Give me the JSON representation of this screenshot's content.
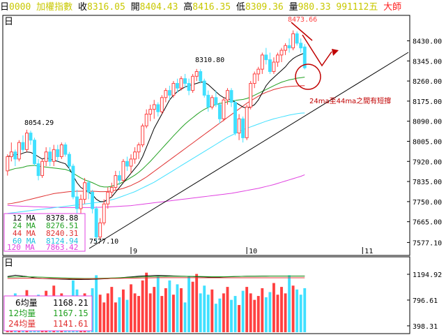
{
  "header": {
    "period_label": "日",
    "code": "0000",
    "name": "加權指數",
    "close_label": "收",
    "close": "8316.05",
    "open_label": "開",
    "open": "8404.43",
    "high_label": "高",
    "high": "8416.35",
    "low_label": "低",
    "low": "8309.36",
    "volume_label": "量",
    "volume": "980.33",
    "date": "991112五",
    "brand": "大師"
  },
  "colors": {
    "up": "#ff4040",
    "down": "#40e0ff",
    "ma12": "#000000",
    "ma24": "#20a020",
    "ma44": "#e03030",
    "ma60": "#40e0ff",
    "ma120": "#e040e0",
    "vol_ma6": "#000000",
    "vol_ma12": "#20a020",
    "vol_ma24": "#e03030"
  },
  "price_panel": {
    "corner_label": "日",
    "annotation": "24ma至44ma之間有短撐",
    "annotation_color": "#c00000",
    "marks": {
      "high": "8473.66",
      "mid": "8310.80",
      "left": "8054.29",
      "low": "7577.10"
    },
    "legend": [
      {
        "label": "12 MA",
        "value": "8378.88"
      },
      {
        "label": "24 MA",
        "value": "8276.51"
      },
      {
        "label": "44 MA",
        "value": "8240.31"
      },
      {
        "label": "60 MA",
        "value": "8124.94"
      },
      {
        "label": "120 MA",
        "value": "7863.42"
      }
    ]
  },
  "volume_panel": {
    "corner_label": "日",
    "legend": [
      {
        "label": "6均量",
        "value": "1168.21"
      },
      {
        "label": "12均量",
        "value": "1167.15"
      },
      {
        "label": "24均量",
        "value": "1141.61"
      }
    ]
  },
  "chart_data": {
    "type": "candlestick",
    "ylim": [
      7540,
      8520
    ],
    "ticks": [
      8430.0,
      8345.0,
      8260.0,
      8175.0,
      8090.0,
      8005.0,
      7920.0,
      7835.0,
      7750.0,
      7665.0,
      7577.1
    ],
    "tick_labels": [
      "8430.00",
      "8345.00",
      "8260.00",
      "8175.00",
      "8090.00",
      "8005.00",
      "7920.00",
      "7835.00",
      "7750.00",
      "7665.00",
      "7577.10"
    ],
    "month_labels": [
      {
        "label": "9",
        "index": 32
      },
      {
        "label": "10",
        "index": 62
      },
      {
        "label": "11",
        "index": 92
      }
    ],
    "ohlc": [
      [
        7880,
        7950,
        7860,
        7940
      ],
      [
        7940,
        8000,
        7920,
        7960
      ],
      [
        7960,
        7970,
        7900,
        7930
      ],
      [
        7930,
        8010,
        7920,
        8000
      ],
      [
        8000,
        8030,
        7960,
        7970
      ],
      [
        7970,
        8054,
        7960,
        8040
      ],
      [
        8040,
        8050,
        7990,
        8010
      ],
      [
        8010,
        8020,
        7900,
        7910
      ],
      [
        7910,
        7930,
        7840,
        7860
      ],
      [
        7860,
        7930,
        7850,
        7920
      ],
      [
        7920,
        7980,
        7900,
        7960
      ],
      [
        7960,
        7980,
        7900,
        7920
      ],
      [
        7920,
        7990,
        7900,
        7970
      ],
      [
        7970,
        7990,
        7920,
        7940
      ],
      [
        7940,
        8000,
        7930,
        7990
      ],
      [
        7990,
        8000,
        7940,
        7950
      ],
      [
        7950,
        7960,
        7880,
        7900
      ],
      [
        7900,
        7910,
        7760,
        7770
      ],
      [
        7770,
        7800,
        7700,
        7720
      ],
      [
        7720,
        7780,
        7690,
        7760
      ],
      [
        7760,
        7850,
        7740,
        7830
      ],
      [
        7830,
        7840,
        7760,
        7790
      ],
      [
        7790,
        7800,
        7700,
        7720
      ],
      [
        7720,
        7730,
        7577,
        7600
      ],
      [
        7600,
        7680,
        7590,
        7660
      ],
      [
        7660,
        7760,
        7650,
        7740
      ],
      [
        7740,
        7810,
        7720,
        7790
      ],
      [
        7790,
        7830,
        7770,
        7810
      ],
      [
        7810,
        7880,
        7800,
        7860
      ],
      [
        7860,
        7880,
        7820,
        7840
      ],
      [
        7840,
        7930,
        7830,
        7920
      ],
      [
        7920,
        7940,
        7880,
        7900
      ],
      [
        7900,
        7950,
        7870,
        7930
      ],
      [
        7930,
        7980,
        7910,
        7960
      ],
      [
        7960,
        8000,
        7930,
        7990
      ],
      [
        7990,
        8080,
        7980,
        8070
      ],
      [
        8070,
        8140,
        8060,
        8120
      ],
      [
        8120,
        8160,
        8090,
        8140
      ],
      [
        8140,
        8180,
        8100,
        8160
      ],
      [
        8160,
        8170,
        8110,
        8130
      ],
      [
        8130,
        8200,
        8120,
        8190
      ],
      [
        8190,
        8230,
        8170,
        8220
      ],
      [
        8220,
        8240,
        8180,
        8200
      ],
      [
        8200,
        8260,
        8190,
        8250
      ],
      [
        8250,
        8270,
        8210,
        8230
      ],
      [
        8230,
        8280,
        8220,
        8270
      ],
      [
        8270,
        8290,
        8230,
        8250
      ],
      [
        8250,
        8270,
        8200,
        8220
      ],
      [
        8220,
        8290,
        8210,
        8280
      ],
      [
        8280,
        8311,
        8260,
        8300
      ],
      [
        8300,
        8310,
        8250,
        8260
      ],
      [
        8260,
        8270,
        8190,
        8200
      ],
      [
        8200,
        8220,
        8130,
        8150
      ],
      [
        8150,
        8200,
        8140,
        8190
      ],
      [
        8190,
        8220,
        8150,
        8160
      ],
      [
        8160,
        8170,
        8080,
        8100
      ],
      [
        8100,
        8190,
        8090,
        8180
      ],
      [
        8180,
        8230,
        8160,
        8220
      ],
      [
        8220,
        8230,
        8150,
        8170
      ],
      [
        8170,
        8180,
        8030,
        8040
      ],
      [
        8040,
        8120,
        8010,
        8100
      ],
      [
        8100,
        8110,
        8000,
        8020
      ],
      [
        8020,
        8160,
        8010,
        8150
      ],
      [
        8150,
        8260,
        8140,
        8250
      ],
      [
        8250,
        8300,
        8230,
        8290
      ],
      [
        8290,
        8320,
        8260,
        8310
      ],
      [
        8310,
        8380,
        8290,
        8370
      ],
      [
        8370,
        8400,
        8330,
        8350
      ],
      [
        8350,
        8380,
        8290,
        8300
      ],
      [
        8300,
        8360,
        8290,
        8340
      ],
      [
        8340,
        8380,
        8320,
        8370
      ],
      [
        8370,
        8400,
        8340,
        8390
      ],
      [
        8390,
        8420,
        8370,
        8410
      ],
      [
        8410,
        8440,
        8380,
        8400
      ],
      [
        8400,
        8474,
        8390,
        8460
      ],
      [
        8460,
        8470,
        8410,
        8420
      ],
      [
        8420,
        8440,
        8380,
        8400
      ],
      [
        8404,
        8416,
        8309,
        8316
      ]
    ],
    "ma12": [
      7940,
      7945,
      7950,
      7948,
      7955,
      7960,
      7958,
      7950,
      7940,
      7930,
      7935,
      7930,
      7925,
      7920,
      7915,
      7910,
      7890,
      7860,
      7830,
      7810,
      7800,
      7790,
      7780,
      7760,
      7750,
      7750,
      7760,
      7770,
      7790,
      7810,
      7830,
      7850,
      7870,
      7890,
      7910,
      7940,
      7980,
      8020,
      8060,
      8090,
      8120,
      8150,
      8180,
      8200,
      8215,
      8225,
      8235,
      8240,
      8245,
      8250,
      8255,
      8255,
      8245,
      8230,
      8215,
      8200,
      8190,
      8185,
      8180,
      8170,
      8160,
      8150,
      8145,
      8150,
      8160,
      8180,
      8210,
      8240,
      8260,
      8275,
      8290,
      8305,
      8320,
      8340,
      8355,
      8365,
      8372,
      8378.88
    ],
    "ma24": [
      7880,
      7885,
      7890,
      7892,
      7895,
      7900,
      7902,
      7903,
      7900,
      7898,
      7896,
      7894,
      7892,
      7890,
      7888,
      7886,
      7880,
      7870,
      7860,
      7850,
      7842,
      7836,
      7830,
      7822,
      7815,
      7812,
      7812,
      7815,
      7820,
      7826,
      7833,
      7842,
      7852,
      7862,
      7874,
      7888,
      7904,
      7920,
      7938,
      7956,
      7974,
      7992,
      8010,
      8028,
      8045,
      8062,
      8078,
      8092,
      8105,
      8118,
      8130,
      8140,
      8148,
      8155,
      8160,
      8165,
      8168,
      8172,
      8175,
      8178,
      8180,
      8182,
      8186,
      8192,
      8200,
      8208,
      8216,
      8224,
      8232,
      8240,
      8248,
      8255,
      8260,
      8265,
      8268,
      8272,
      8274,
      8276.51
    ],
    "ma44": [
      7740,
      7742,
      7745,
      7748,
      7752,
      7756,
      7760,
      7764,
      7768,
      7772,
      7776,
      7780,
      7784,
      7786,
      7788,
      7790,
      7792,
      7793,
      7794,
      7794,
      7794,
      7794,
      7794,
      7793,
      7792,
      7792,
      7793,
      7795,
      7798,
      7802,
      7806,
      7812,
      7818,
      7826,
      7834,
      7844,
      7854,
      7866,
      7878,
      7890,
      7902,
      7914,
      7926,
      7938,
      7950,
      7962,
      7974,
      7986,
      7998,
      8010,
      8022,
      8034,
      8046,
      8058,
      8070,
      8082,
      8094,
      8106,
      8118,
      8130,
      8142,
      8154,
      8166,
      8176,
      8186,
      8196,
      8205,
      8212,
      8218,
      8224,
      8228,
      8232,
      8235,
      8237,
      8238,
      8239,
      8240,
      8240.31
    ],
    "ma60": [
      7700,
      7702,
      7704,
      7706,
      7708,
      7710,
      7712,
      7714,
      7716,
      7718,
      7720,
      7722,
      7724,
      7726,
      7728,
      7730,
      7732,
      7734,
      7736,
      7738,
      7740,
      7742,
      7744,
      7746,
      7748,
      7750,
      7754,
      7758,
      7762,
      7768,
      7774,
      7780,
      7786,
      7792,
      7800,
      7808,
      7816,
      7824,
      7832,
      7842,
      7852,
      7862,
      7872,
      7882,
      7892,
      7902,
      7912,
      7922,
      7932,
      7942,
      7952,
      7962,
      7972,
      7982,
      7992,
      8002,
      8012,
      8022,
      8030,
      8038,
      8046,
      8054,
      8060,
      8066,
      8072,
      8078,
      8084,
      8090,
      8095,
      8100,
      8104,
      8108,
      8112,
      8116,
      8119,
      8122,
      8124,
      8124.94
    ],
    "ma120": [
      7734,
      7733,
      7732,
      7731,
      7730,
      7730,
      7729,
      7728,
      7728,
      7727,
      7727,
      7726,
      7726,
      7726,
      7725,
      7725,
      7725,
      7725,
      7725,
      7725,
      7725,
      7725,
      7725,
      7726,
      7726,
      7727,
      7727,
      7728,
      7729,
      7730,
      7731,
      7732,
      7733,
      7735,
      7737,
      7739,
      7741,
      7743,
      7745,
      7747,
      7749,
      7751,
      7753,
      7755,
      7757,
      7759,
      7761,
      7763,
      7765,
      7767,
      7769,
      7771,
      7773,
      7775,
      7777,
      7779,
      7781,
      7783,
      7785,
      7788,
      7791,
      7794,
      7797,
      7800,
      7803,
      7806,
      7810,
      7814,
      7818,
      7822,
      7827,
      7832,
      7837,
      7842,
      7847,
      7852,
      7857,
      7863.42
    ],
    "volume": [
      760,
      820,
      900,
      700,
      860,
      950,
      720,
      800,
      880,
      780,
      940,
      760,
      1020,
      840,
      900,
      780,
      700,
      1100,
      960,
      820,
      900,
      740,
      980,
      1180,
      880,
      760,
      900,
      1000,
      760,
      840,
      960,
      800,
      1040,
      900,
      860,
      1100,
      1220,
      900,
      1000,
      1160,
      860,
      980,
      1100,
      880,
      1040,
      980,
      760,
      1160,
      1080,
      1200,
      900,
      1020,
      880,
      960,
      740,
      820,
      900,
      1000,
      800,
      860,
      720,
      940,
      1000,
      900,
      800,
      860,
      980,
      840,
      920,
      1060,
      880,
      1000,
      900,
      1180,
      1020,
      960,
      880,
      980.33
    ],
    "vol_ylim": [
      300,
      1400
    ],
    "vol_ticks": [
      1194.92,
      796.61,
      398.31
    ],
    "vol_tick_labels": [
      "1194.92",
      "796.61",
      "398.31"
    ],
    "vol_ma6": [
      1160,
      1170,
      1180,
      1175,
      1165,
      1160,
      1150,
      1140,
      1135,
      1130,
      1128,
      1125,
      1124,
      1122,
      1120,
      1118,
      1116,
      1115,
      1114,
      1114,
      1115,
      1116,
      1118,
      1120,
      1122,
      1125,
      1128,
      1132,
      1136,
      1140,
      1145,
      1150,
      1155,
      1160,
      1165,
      1170,
      1172,
      1174,
      1176,
      1178,
      1176,
      1174,
      1172,
      1170,
      1168,
      1166,
      1164,
      1162,
      1160,
      1158,
      1156,
      1154,
      1152,
      1150,
      1150,
      1152,
      1154,
      1156,
      1158,
      1160,
      1162,
      1164,
      1166,
      1166,
      1166,
      1167,
      1168,
      1168,
      1168,
      1168,
      1168,
      1168,
      1168,
      1168,
      1168,
      1168,
      1168,
      1168.21
    ],
    "vol_ma12": [
      1150,
      1152,
      1154,
      1156,
      1156,
      1156,
      1155,
      1154,
      1152,
      1150,
      1148,
      1146,
      1144,
      1142,
      1140,
      1138,
      1136,
      1134,
      1133,
      1132,
      1131,
      1131,
      1131,
      1132,
      1133,
      1134,
      1136,
      1138,
      1140,
      1142,
      1144,
      1146,
      1148,
      1150,
      1152,
      1154,
      1156,
      1158,
      1160,
      1161,
      1162,
      1163,
      1164,
      1164,
      1164,
      1164,
      1164,
      1164,
      1163,
      1162,
      1161,
      1160,
      1159,
      1158,
      1158,
      1158,
      1158,
      1159,
      1160,
      1161,
      1162,
      1163,
      1164,
      1165,
      1165,
      1166,
      1166,
      1166,
      1167,
      1167,
      1167,
      1167,
      1167,
      1167,
      1167,
      1167,
      1167,
      1167.15
    ],
    "vol_ma24": [
      1130,
      1131,
      1132,
      1133,
      1134,
      1134,
      1134,
      1134,
      1133,
      1132,
      1131,
      1130,
      1129,
      1128,
      1127,
      1126,
      1125,
      1124,
      1124,
      1124,
      1124,
      1124,
      1125,
      1126,
      1127,
      1128,
      1129,
      1130,
      1131,
      1132,
      1133,
      1134,
      1135,
      1136,
      1137,
      1138,
      1139,
      1140,
      1141,
      1142,
      1142,
      1142,
      1142,
      1142,
      1142,
      1142,
      1142,
      1142,
      1142,
      1142,
      1141,
      1141,
      1141,
      1141,
      1141,
      1141,
      1141,
      1141,
      1141,
      1141,
      1141,
      1141,
      1141,
      1141,
      1141,
      1141,
      1141,
      1141,
      1141,
      1141,
      1141,
      1141,
      1141,
      1141,
      1141,
      1141,
      1141,
      1141.61
    ]
  }
}
